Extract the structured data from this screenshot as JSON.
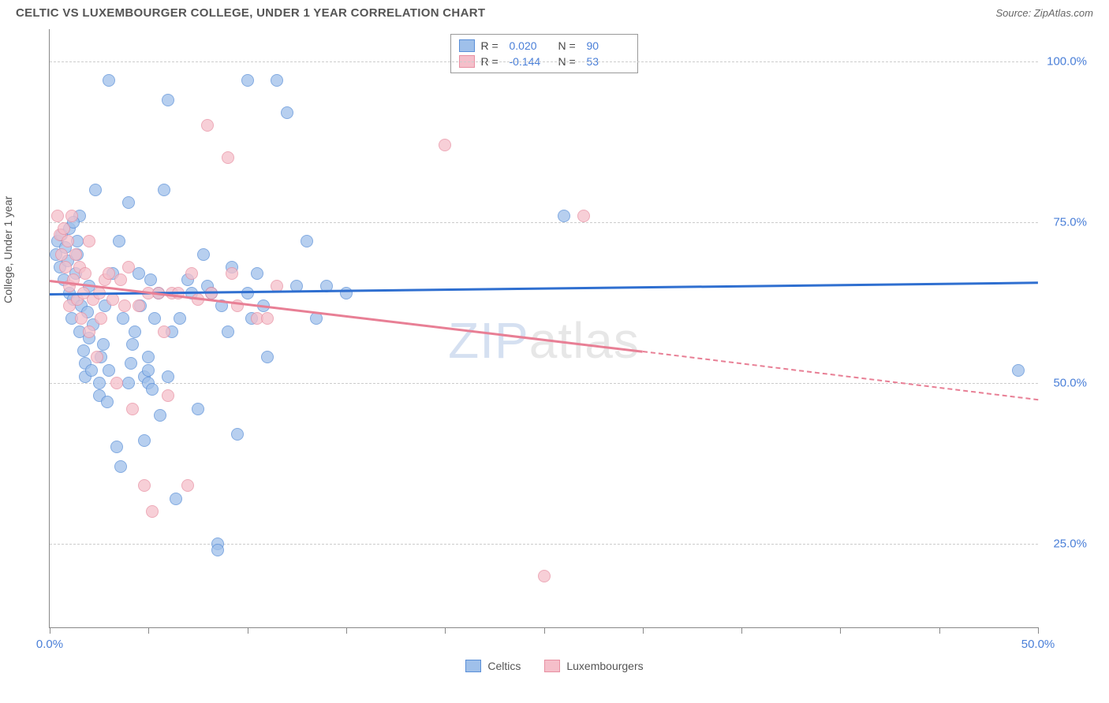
{
  "header": {
    "title": "CELTIC VS LUXEMBOURGER COLLEGE, UNDER 1 YEAR CORRELATION CHART",
    "source_label": "Source: ",
    "source_value": "ZipAtlas.com"
  },
  "watermark": {
    "prefix": "ZIP",
    "suffix": "atlas"
  },
  "chart": {
    "type": "scatter",
    "background_color": "#ffffff",
    "grid_color": "#cccccc",
    "axis_color": "#888888",
    "y_axis_title": "College, Under 1 year",
    "label_fontsize": 14,
    "tick_label_color": "#4a7fd8",
    "xlim": [
      0,
      50
    ],
    "ylim": [
      12,
      105
    ],
    "x_ticks": [
      0,
      5,
      10,
      15,
      20,
      25,
      30,
      35,
      40,
      45,
      50
    ],
    "x_tick_labels": {
      "0": "0.0%",
      "50": "50.0%"
    },
    "y_grid": [
      25,
      50,
      75,
      100
    ],
    "y_tick_labels": {
      "25": "25.0%",
      "50": "50.0%",
      "75": "75.0%",
      "100": "100.0%"
    },
    "point_radius": 8,
    "point_fill_opacity": 0.35,
    "point_stroke_width": 1.5,
    "series": [
      {
        "name": "Celtics",
        "fill_color": "#9fc0ea",
        "stroke_color": "#5a8fd8",
        "line_color": "#2f6fd0",
        "R": "0.020",
        "N": "90",
        "trend": {
          "x1": 0,
          "y1": 64.0,
          "x2": 50,
          "y2": 65.8,
          "dash_from_x": 50
        },
        "points": [
          [
            0.3,
            70
          ],
          [
            0.4,
            72
          ],
          [
            0.5,
            68
          ],
          [
            0.6,
            73
          ],
          [
            0.7,
            66
          ],
          [
            0.8,
            71
          ],
          [
            0.9,
            69
          ],
          [
            1.0,
            64
          ],
          [
            1.0,
            74
          ],
          [
            1.1,
            60
          ],
          [
            1.2,
            63
          ],
          [
            1.3,
            67
          ],
          [
            1.4,
            70
          ],
          [
            1.4,
            72
          ],
          [
            1.5,
            58
          ],
          [
            1.5,
            76
          ],
          [
            1.6,
            62
          ],
          [
            1.7,
            55
          ],
          [
            1.8,
            51
          ],
          [
            1.8,
            53
          ],
          [
            1.9,
            61
          ],
          [
            2.0,
            57
          ],
          [
            2.0,
            65
          ],
          [
            2.1,
            52
          ],
          [
            2.2,
            59
          ],
          [
            2.3,
            80
          ],
          [
            2.5,
            48
          ],
          [
            2.5,
            50
          ],
          [
            2.6,
            54
          ],
          [
            2.7,
            56
          ],
          [
            2.8,
            62
          ],
          [
            2.9,
            47
          ],
          [
            3.0,
            97
          ],
          [
            3.0,
            52
          ],
          [
            3.2,
            67
          ],
          [
            3.4,
            40
          ],
          [
            3.5,
            72
          ],
          [
            3.6,
            37
          ],
          [
            3.7,
            60
          ],
          [
            4.0,
            78
          ],
          [
            4.0,
            50
          ],
          [
            4.1,
            53
          ],
          [
            4.2,
            56
          ],
          [
            4.3,
            58
          ],
          [
            4.5,
            67
          ],
          [
            4.6,
            62
          ],
          [
            4.8,
            41
          ],
          [
            4.8,
            51
          ],
          [
            5.0,
            50
          ],
          [
            5.0,
            52
          ],
          [
            5.0,
            54
          ],
          [
            5.1,
            66
          ],
          [
            5.2,
            49
          ],
          [
            5.3,
            60
          ],
          [
            5.5,
            64
          ],
          [
            5.6,
            45
          ],
          [
            5.8,
            80
          ],
          [
            6.0,
            94
          ],
          [
            6.0,
            51
          ],
          [
            6.2,
            58
          ],
          [
            6.4,
            32
          ],
          [
            6.6,
            60
          ],
          [
            7.0,
            66
          ],
          [
            7.2,
            64
          ],
          [
            7.5,
            46
          ],
          [
            7.8,
            70
          ],
          [
            8.0,
            65
          ],
          [
            8.2,
            64
          ],
          [
            8.5,
            25
          ],
          [
            8.5,
            24
          ],
          [
            8.7,
            62
          ],
          [
            9.0,
            58
          ],
          [
            9.2,
            68
          ],
          [
            9.5,
            42
          ],
          [
            10.0,
            64
          ],
          [
            10.0,
            97
          ],
          [
            10.2,
            60
          ],
          [
            10.5,
            67
          ],
          [
            10.8,
            62
          ],
          [
            11.0,
            54
          ],
          [
            11.5,
            97
          ],
          [
            12.0,
            92
          ],
          [
            12.5,
            65
          ],
          [
            13.0,
            72
          ],
          [
            13.5,
            60
          ],
          [
            14.0,
            65
          ],
          [
            15.0,
            64
          ],
          [
            26.0,
            76
          ],
          [
            49.0,
            52
          ],
          [
            1.2,
            75
          ]
        ]
      },
      {
        "name": "Luxembourgers",
        "fill_color": "#f5bfca",
        "stroke_color": "#e890a2",
        "line_color": "#e87f95",
        "R": "-0.144",
        "N": "53",
        "trend": {
          "x1": 0,
          "y1": 66.0,
          "x2": 30,
          "y2": 55.0,
          "dash_from_x": 30,
          "dash_x2": 50,
          "dash_y2": 47.5
        },
        "points": [
          [
            0.4,
            76
          ],
          [
            0.5,
            73
          ],
          [
            0.6,
            70
          ],
          [
            0.7,
            74
          ],
          [
            0.8,
            68
          ],
          [
            0.9,
            72
          ],
          [
            1.0,
            65
          ],
          [
            1.0,
            62
          ],
          [
            1.1,
            76
          ],
          [
            1.2,
            66
          ],
          [
            1.3,
            70
          ],
          [
            1.4,
            63
          ],
          [
            1.5,
            68
          ],
          [
            1.6,
            60
          ],
          [
            1.7,
            64
          ],
          [
            1.8,
            67
          ],
          [
            2.0,
            72
          ],
          [
            2.0,
            58
          ],
          [
            2.2,
            63
          ],
          [
            2.4,
            54
          ],
          [
            2.5,
            64
          ],
          [
            2.6,
            60
          ],
          [
            2.8,
            66
          ],
          [
            3.0,
            67
          ],
          [
            3.2,
            63
          ],
          [
            3.4,
            50
          ],
          [
            3.6,
            66
          ],
          [
            3.8,
            62
          ],
          [
            4.0,
            68
          ],
          [
            4.2,
            46
          ],
          [
            4.5,
            62
          ],
          [
            4.8,
            34
          ],
          [
            5.0,
            64
          ],
          [
            5.2,
            30
          ],
          [
            5.5,
            64
          ],
          [
            5.8,
            58
          ],
          [
            6.0,
            48
          ],
          [
            6.2,
            64
          ],
          [
            6.5,
            64
          ],
          [
            7.0,
            34
          ],
          [
            7.2,
            67
          ],
          [
            7.5,
            63
          ],
          [
            8.0,
            90
          ],
          [
            8.2,
            64
          ],
          [
            9.0,
            85
          ],
          [
            9.2,
            67
          ],
          [
            9.5,
            62
          ],
          [
            10.5,
            60
          ],
          [
            11.0,
            60
          ],
          [
            11.5,
            65
          ],
          [
            20.0,
            87
          ],
          [
            25.0,
            20
          ],
          [
            27.0,
            76
          ]
        ]
      }
    ],
    "bottom_legend": [
      {
        "label": "Celtics",
        "fill": "#9fc0ea",
        "stroke": "#5a8fd8"
      },
      {
        "label": "Luxembourgers",
        "fill": "#f5bfca",
        "stroke": "#e890a2"
      }
    ]
  }
}
